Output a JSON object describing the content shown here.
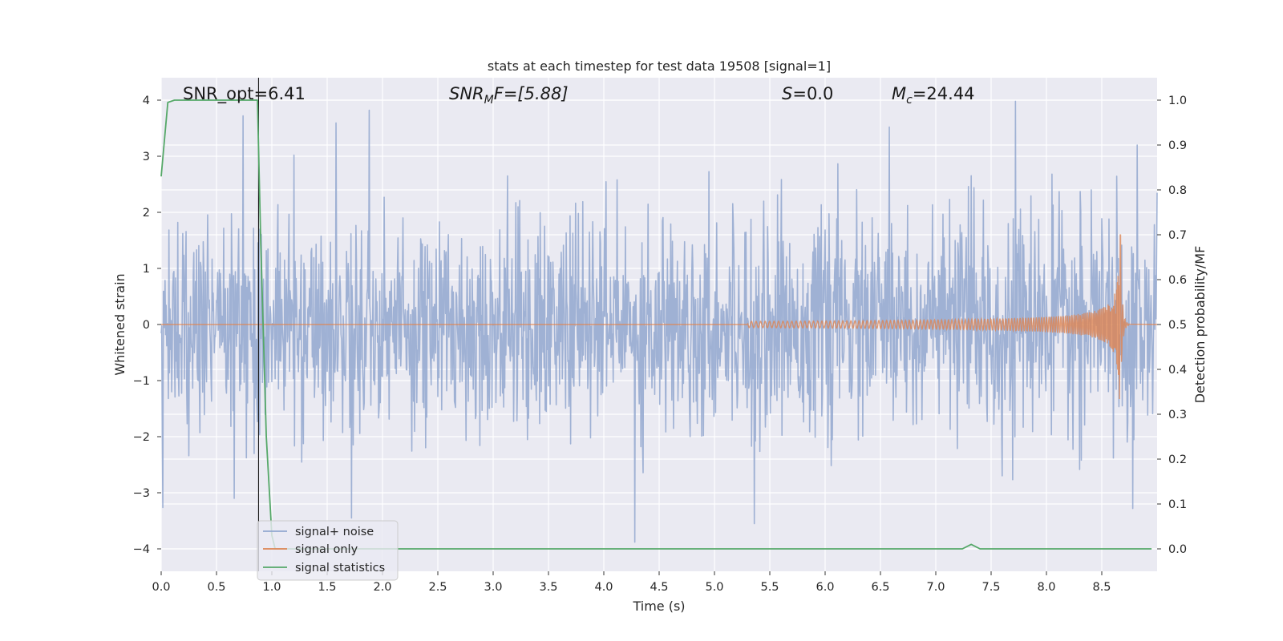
{
  "chart_data": {
    "type": "line",
    "title": "stats at each timestep for test data 19508 [signal=1]",
    "xlabel": "Time (s)",
    "ylabel": "Whitened strain",
    "y2label": "Detection probability/MF",
    "xlim": [
      0.0,
      9.0
    ],
    "ylim": [
      -4.4,
      4.4
    ],
    "y2lim": [
      -0.05,
      1.05
    ],
    "xticks": [
      "0.0",
      "0.5",
      "1.0",
      "1.5",
      "2.0",
      "2.5",
      "3.0",
      "3.5",
      "4.0",
      "4.5",
      "5.0",
      "5.5",
      "6.0",
      "6.5",
      "7.0",
      "7.5",
      "8.0",
      "8.5"
    ],
    "yticks": [
      "4",
      "3",
      "2",
      "1",
      "0",
      "−1",
      "−2",
      "−3",
      "−4"
    ],
    "y2ticks": [
      "1.0",
      "0.9",
      "0.8",
      "0.7",
      "0.6",
      "0.5",
      "0.4",
      "0.3",
      "0.2",
      "0.1",
      "0.0"
    ],
    "grid": true,
    "legend_position": "lower-left",
    "annotations": {
      "snr_opt": "SNR_opt=6.41",
      "snr_mf_main": "SNR",
      "snr_mf_sub": "M",
      "snr_mf_rest": "F=[5.88]",
      "s_main": "S",
      "s_rest": "=0.0",
      "mc_main": "M",
      "mc_sub": "c",
      "mc_rest": "=24.44"
    },
    "vline_x": 0.88,
    "series": [
      {
        "name": "signal+ noise",
        "color": "#92a7cf",
        "axis": "left",
        "style": "noise",
        "sample_rate_hz": 200,
        "envelope": {
          "typical_abs_peak": 1.9,
          "min": -3.9,
          "max": 4.0
        },
        "notable_peaks": [
          [
            0.74,
            3.72
          ],
          [
            1.88,
            3.82
          ],
          [
            7.72,
            3.98
          ],
          [
            8.82,
            3.2
          ],
          [
            6.58,
            3.52
          ],
          [
            4.28,
            -3.88
          ],
          [
            5.36,
            -3.55
          ],
          [
            1.72,
            -3.45
          ],
          [
            8.78,
            -3.28
          ],
          [
            0.66,
            -3.1
          ]
        ]
      },
      {
        "name": "signal only",
        "color": "#dd8452",
        "axis": "left",
        "style": "chirp",
        "start_x": 5.3,
        "merger_x": 8.67,
        "peak_amplitude": 1.6
      },
      {
        "name": "signal statistics",
        "color": "#55a868",
        "axis": "right",
        "style": "line",
        "x": [
          0.0,
          0.06,
          0.12,
          0.87,
          0.9,
          0.95,
          1.0,
          1.03,
          1.1,
          2.0,
          3.0,
          4.0,
          5.0,
          6.0,
          7.0,
          7.24,
          7.32,
          7.4,
          7.5,
          8.0,
          8.95
        ],
        "values": [
          0.83,
          0.995,
          1.0,
          1.0,
          0.68,
          0.25,
          0.03,
          0.0,
          0.0,
          0.0,
          0.0,
          0.0,
          0.0,
          0.0,
          0.0,
          0.0,
          0.01,
          0.0,
          0.0,
          0.0,
          0.0
        ]
      }
    ]
  }
}
